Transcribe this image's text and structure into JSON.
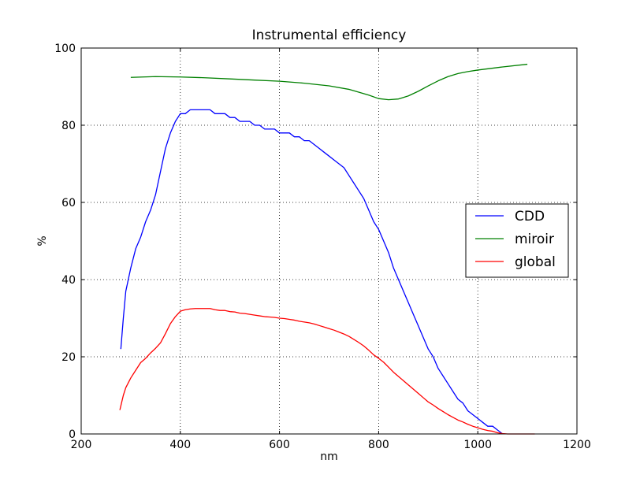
{
  "chart_data": {
    "type": "line",
    "title": "Instrumental efficiency",
    "xlabel": "nm",
    "ylabel": "%",
    "xlim": [
      200,
      1200
    ],
    "ylim": [
      0,
      100
    ],
    "xticks": [
      200,
      400,
      600,
      800,
      1000,
      1200
    ],
    "yticks": [
      0,
      20,
      40,
      60,
      80,
      100
    ],
    "grid": true,
    "grid_style": "dotted",
    "legend_position": "center-right",
    "series": [
      {
        "name": "CDD",
        "color": "#0000ff",
        "x": [
          280,
          285,
          290,
          300,
          310,
          320,
          330,
          340,
          350,
          360,
          370,
          380,
          390,
          400,
          410,
          420,
          430,
          440,
          450,
          460,
          470,
          480,
          490,
          500,
          510,
          520,
          530,
          540,
          550,
          560,
          570,
          580,
          590,
          600,
          610,
          620,
          630,
          640,
          650,
          660,
          670,
          680,
          690,
          700,
          710,
          720,
          730,
          740,
          750,
          760,
          770,
          780,
          790,
          800,
          810,
          820,
          830,
          840,
          850,
          860,
          870,
          880,
          890,
          900,
          910,
          920,
          930,
          940,
          950,
          960,
          970,
          980,
          990,
          1000,
          1010,
          1020,
          1030,
          1040,
          1050
        ],
        "y": [
          22,
          30,
          37,
          43,
          48,
          51,
          55,
          58,
          62,
          68,
          74,
          78,
          81,
          83,
          83,
          84,
          84,
          84,
          84,
          84,
          83,
          83,
          83,
          82,
          82,
          81,
          81,
          81,
          80,
          80,
          79,
          79,
          79,
          78,
          78,
          78,
          77,
          77,
          76,
          76,
          75,
          74,
          73,
          72,
          71,
          70,
          69,
          67,
          65,
          63,
          61,
          58,
          55,
          53,
          50,
          47,
          43,
          40,
          37,
          34,
          31,
          28,
          25,
          22,
          20,
          17,
          15,
          13,
          11,
          9,
          8,
          6,
          5,
          4,
          3,
          2,
          2,
          1,
          0
        ]
      },
      {
        "name": "miroir",
        "color": "#008000",
        "x": [
          300,
          350,
          400,
          450,
          500,
          550,
          600,
          650,
          700,
          740,
          780,
          800,
          820,
          840,
          860,
          880,
          900,
          920,
          940,
          960,
          980,
          1000,
          1050,
          1100
        ],
        "y": [
          92.4,
          92.6,
          92.5,
          92.3,
          92.0,
          91.7,
          91.4,
          90.9,
          90.2,
          89.3,
          87.8,
          86.9,
          86.6,
          86.8,
          87.6,
          88.8,
          90.2,
          91.5,
          92.6,
          93.4,
          93.9,
          94.3,
          95.1,
          95.8
        ]
      },
      {
        "name": "global",
        "color": "#ff0000",
        "x": [
          278,
          285,
          290,
          300,
          310,
          320,
          330,
          340,
          350,
          360,
          370,
          380,
          390,
          400,
          410,
          420,
          430,
          440,
          450,
          460,
          470,
          480,
          490,
          500,
          510,
          520,
          530,
          540,
          550,
          560,
          570,
          580,
          590,
          600,
          610,
          620,
          630,
          640,
          650,
          660,
          670,
          680,
          690,
          700,
          710,
          720,
          730,
          740,
          750,
          760,
          770,
          780,
          790,
          800,
          810,
          820,
          830,
          840,
          850,
          860,
          870,
          880,
          890,
          900,
          910,
          920,
          930,
          940,
          950,
          960,
          970,
          980,
          990,
          1000,
          1010,
          1020,
          1030,
          1040,
          1050,
          1060,
          1080,
          1100,
          1115
        ],
        "y": [
          6.2,
          10,
          12,
          14.5,
          16.5,
          18.5,
          19.6,
          21,
          22.2,
          23.6,
          26,
          28.6,
          30.4,
          31.8,
          32.2,
          32.4,
          32.5,
          32.5,
          32.5,
          32.5,
          32.2,
          32,
          32,
          31.7,
          31.6,
          31.3,
          31.2,
          31,
          30.8,
          30.6,
          30.4,
          30.3,
          30.2,
          30,
          29.9,
          29.7,
          29.5,
          29.2,
          29,
          28.8,
          28.5,
          28.1,
          27.7,
          27.3,
          26.9,
          26.4,
          25.9,
          25.3,
          24.5,
          23.7,
          22.8,
          21.7,
          20.5,
          19.6,
          18.6,
          17.3,
          16,
          14.9,
          13.8,
          12.7,
          11.6,
          10.5,
          9.4,
          8.3,
          7.5,
          6.6,
          5.8,
          5,
          4.3,
          3.6,
          3.1,
          2.5,
          2,
          1.6,
          1.2,
          0.9,
          0.7,
          0.3,
          0.1,
          0,
          0,
          0,
          0
        ]
      }
    ]
  }
}
